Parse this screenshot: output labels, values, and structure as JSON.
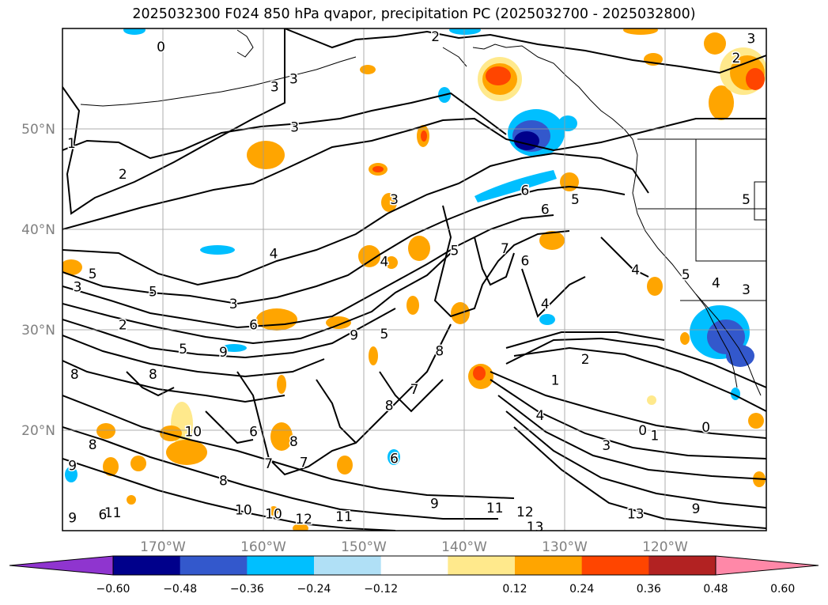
{
  "title": "2025032300 F024 850 hPa qvapor, precipitation PC (2025032700 - 2025032800)",
  "map": {
    "lon_range": [
      -180,
      -110
    ],
    "lat_range": [
      10,
      60
    ],
    "lat_labels": [
      "50°N",
      "40°N",
      "30°N",
      "20°N"
    ],
    "lon_labels": [
      "170°W",
      "160°W",
      "150°W",
      "140°W",
      "130°W",
      "120°W"
    ],
    "contour_labels": [
      {
        "text": "0",
        "lon": -170.2,
        "lat": 58.2
      },
      {
        "text": "2",
        "lon": -142.9,
        "lat": 59.2
      },
      {
        "text": "3",
        "lon": -158.9,
        "lat": 54.2
      },
      {
        "text": "3",
        "lon": -157.0,
        "lat": 55.0
      },
      {
        "text": "3",
        "lon": -156.9,
        "lat": 50.2
      },
      {
        "text": "1",
        "lon": -179.1,
        "lat": 48.6
      },
      {
        "text": "2",
        "lon": -174.0,
        "lat": 45.5
      },
      {
        "text": "3",
        "lon": -147.0,
        "lat": 43.0
      },
      {
        "text": "6",
        "lon": -134.0,
        "lat": 43.9
      },
      {
        "text": "5",
        "lon": -129.0,
        "lat": 43.0
      },
      {
        "text": "6",
        "lon": -132.0,
        "lat": 42.0
      },
      {
        "text": "4",
        "lon": -159.0,
        "lat": 37.6
      },
      {
        "text": "4",
        "lon": -148.0,
        "lat": 36.8
      },
      {
        "text": "5",
        "lon": -141.0,
        "lat": 37.9
      },
      {
        "text": "7",
        "lon": -136.0,
        "lat": 38.1
      },
      {
        "text": "6",
        "lon": -134.0,
        "lat": 36.9
      },
      {
        "text": "4",
        "lon": -123.0,
        "lat": 36.0
      },
      {
        "text": "5",
        "lon": -118.0,
        "lat": 35.5
      },
      {
        "text": "4",
        "lon": -115.0,
        "lat": 34.7
      },
      {
        "text": "3",
        "lon": -178.5,
        "lat": 34.3
      },
      {
        "text": "5",
        "lon": -177.0,
        "lat": 35.6
      },
      {
        "text": "5",
        "lon": -171.0,
        "lat": 33.8
      },
      {
        "text": "4",
        "lon": -132.0,
        "lat": 32.6
      },
      {
        "text": "3",
        "lon": -163.0,
        "lat": 32.6
      },
      {
        "text": "2",
        "lon": -174.0,
        "lat": 30.5
      },
      {
        "text": "6",
        "lon": -161.0,
        "lat": 30.5
      },
      {
        "text": "5",
        "lon": -168.0,
        "lat": 28.1
      },
      {
        "text": "9",
        "lon": -164.0,
        "lat": 27.8
      },
      {
        "text": "8",
        "lon": -171.0,
        "lat": 25.6
      },
      {
        "text": "8",
        "lon": -178.8,
        "lat": 25.6
      },
      {
        "text": "9",
        "lon": -151.0,
        "lat": 29.5
      },
      {
        "text": "5",
        "lon": -148.0,
        "lat": 29.6
      },
      {
        "text": "8",
        "lon": -142.5,
        "lat": 27.9
      },
      {
        "text": "2",
        "lon": -128.0,
        "lat": 27.1
      },
      {
        "text": "7",
        "lon": -145.0,
        "lat": 24.1
      },
      {
        "text": "8",
        "lon": -147.5,
        "lat": 22.5
      },
      {
        "text": "4",
        "lon": -132.5,
        "lat": 21.5
      },
      {
        "text": "1",
        "lon": -131.0,
        "lat": 25.0
      },
      {
        "text": "0",
        "lon": -122.3,
        "lat": 20.0
      },
      {
        "text": "1",
        "lon": -121.1,
        "lat": 19.5
      },
      {
        "text": "0",
        "lon": -116.0,
        "lat": 20.3
      },
      {
        "text": "3",
        "lon": -125.9,
        "lat": 18.5
      },
      {
        "text": "10",
        "lon": -167.0,
        "lat": 19.9
      },
      {
        "text": "6",
        "lon": -161.0,
        "lat": 19.9
      },
      {
        "text": "8",
        "lon": -157.0,
        "lat": 18.9
      },
      {
        "text": "8",
        "lon": -177.0,
        "lat": 18.6
      },
      {
        "text": "7",
        "lon": -159.5,
        "lat": 16.7
      },
      {
        "text": "7",
        "lon": -156.0,
        "lat": 16.8
      },
      {
        "text": "6",
        "lon": -147.0,
        "lat": 17.2
      },
      {
        "text": "9",
        "lon": -179.0,
        "lat": 16.5
      },
      {
        "text": "8",
        "lon": -164.0,
        "lat": 15.0
      },
      {
        "text": "10",
        "lon": -162.0,
        "lat": 12.1
      },
      {
        "text": "11",
        "lon": -175.0,
        "lat": 11.8
      },
      {
        "text": "10",
        "lon": -159.0,
        "lat": 11.7
      },
      {
        "text": "12",
        "lon": -156.0,
        "lat": 11.2
      },
      {
        "text": "11",
        "lon": -152.0,
        "lat": 11.4
      },
      {
        "text": "9",
        "lon": -179.0,
        "lat": 11.3
      },
      {
        "text": "6",
        "lon": -176.0,
        "lat": 11.6
      },
      {
        "text": "9",
        "lon": -143.0,
        "lat": 12.7
      },
      {
        "text": "11",
        "lon": -137.0,
        "lat": 12.3
      },
      {
        "text": "12",
        "lon": -134.0,
        "lat": 11.9
      },
      {
        "text": "13",
        "lon": -133.0,
        "lat": 10.4
      },
      {
        "text": "13",
        "lon": -123.0,
        "lat": 11.7
      },
      {
        "text": "9",
        "lon": -117.0,
        "lat": 12.2
      },
      {
        "text": "5",
        "lon": -112.0,
        "lat": 43.0
      },
      {
        "text": "3",
        "lon": -111.5,
        "lat": 59.0
      },
      {
        "text": "2",
        "lon": -113.0,
        "lat": 57.1
      },
      {
        "text": "3",
        "lon": -112.0,
        "lat": 34.0
      }
    ]
  },
  "colorbar": {
    "tick_labels": [
      "−0.60",
      "−0.48",
      "−0.36",
      "−0.24",
      "−0.12",
      "0.12",
      "0.24",
      "0.36",
      "0.48",
      "0.60"
    ],
    "colors": [
      "#8f35cf",
      "#00008b",
      "#3358cc",
      "#00bfff",
      "#b0e0f6",
      "#ffffff",
      "#ffe98c",
      "#ffa500",
      "#ff4500",
      "#b22222",
      "#ff88a8"
    ]
  }
}
